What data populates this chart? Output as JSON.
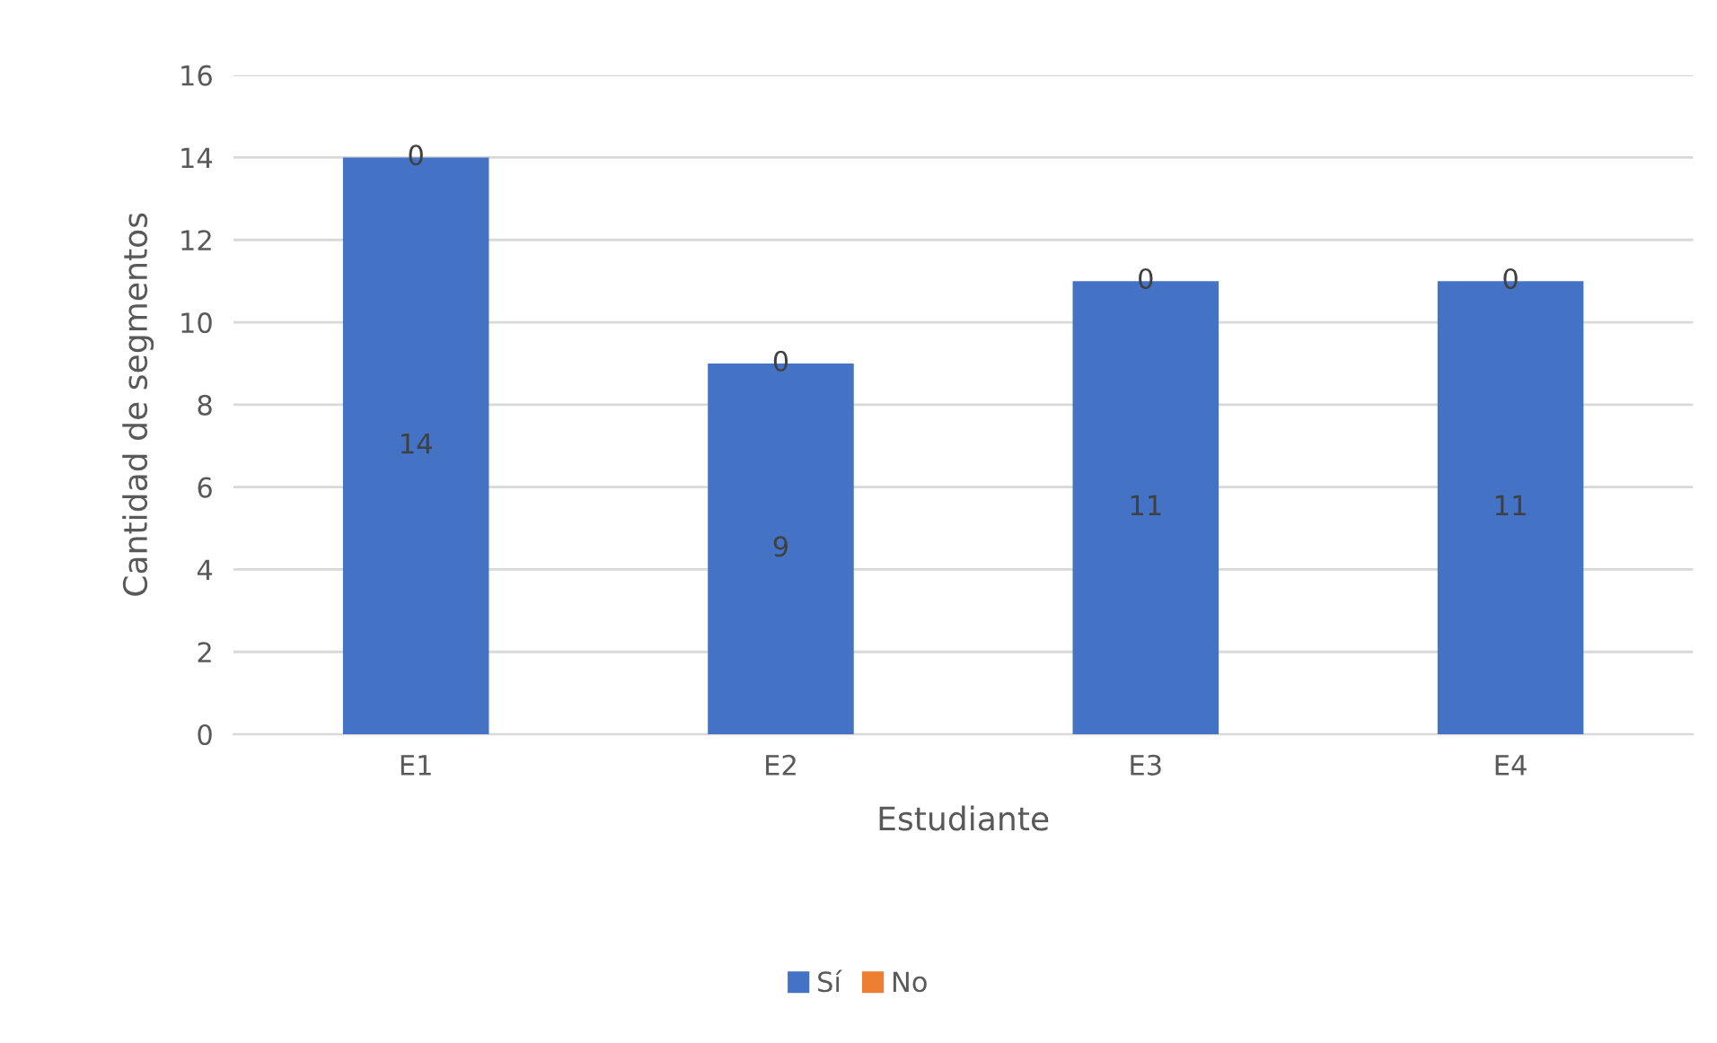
{
  "chart_data": {
    "type": "bar",
    "stacked": true,
    "xlabel": "Estudiante",
    "ylabel": "Cantidad de segmentos",
    "categories": [
      "E1",
      "E2",
      "E3",
      "E4"
    ],
    "series": [
      {
        "name": "Sí",
        "color": "#4472c4",
        "values": [
          14,
          9,
          11,
          11
        ]
      },
      {
        "name": "No",
        "color": "#ed7d31",
        "values": [
          0,
          0,
          0,
          0
        ]
      }
    ],
    "ylim": [
      0,
      16
    ],
    "yticks": [
      0,
      2,
      4,
      6,
      8,
      10,
      12,
      14,
      16
    ],
    "grid": "y",
    "legend": "bottom",
    "data_labels": true
  }
}
